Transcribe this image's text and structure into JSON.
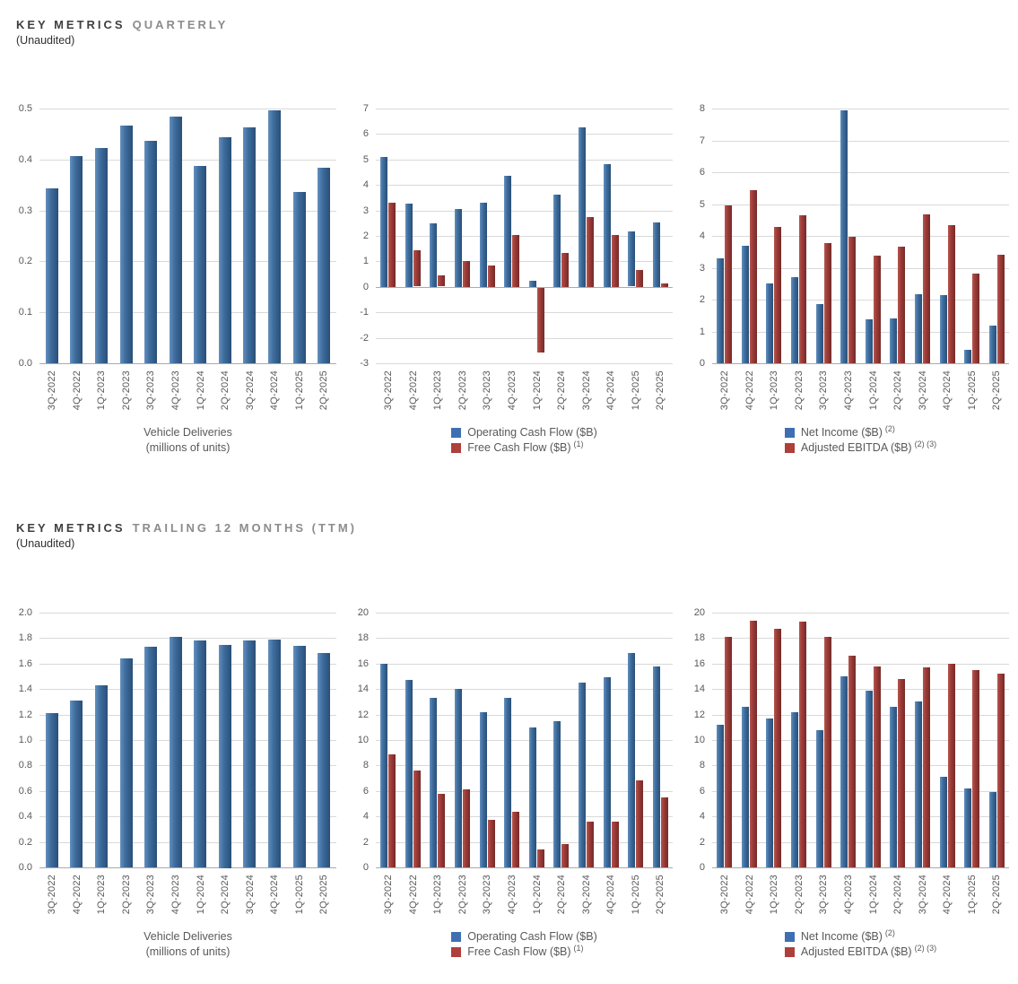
{
  "sections": [
    {
      "title_strong": "KEY METRICS",
      "title_light": "QUARTERLY",
      "subtitle": "(Unaudited)"
    },
    {
      "title_strong": "KEY METRICS",
      "title_light": "TRAILING 12 MONTHS (TTM)",
      "subtitle": "(Unaudited)"
    }
  ],
  "colors": {
    "bar_blue": "#3E6D9E",
    "bar_red": "#9E3B38",
    "legend_blue": "#3E6FB2",
    "legend_red": "#AE3F3B",
    "gridline": "#D9D9D9",
    "axis_line": "#ABABAB",
    "tick_text": "#595959",
    "title_dark": "#3F3F3F",
    "title_light": "#8C8C8C"
  },
  "chart_data": [
    {
      "id": "quarterly-vehicle-deliveries",
      "type": "bar",
      "section": "KEY METRICS QUARTERLY",
      "categories": [
        "3Q-2022",
        "4Q-2022",
        "1Q-2023",
        "2Q-2023",
        "3Q-2023",
        "4Q-2023",
        "1Q-2024",
        "2Q-2024",
        "3Q-2024",
        "4Q-2024",
        "1Q-2025",
        "2Q-2025"
      ],
      "values": [
        0.344,
        0.406,
        0.423,
        0.466,
        0.436,
        0.485,
        0.387,
        0.444,
        0.463,
        0.496,
        0.337,
        0.384
      ],
      "title": "",
      "xlabel": "Vehicle Deliveries (millions of units)",
      "xlabel_lines": [
        "Vehicle Deliveries",
        "(millions of units)"
      ],
      "ylabel": "",
      "ylim": [
        0,
        0.5
      ],
      "yticks": [
        "0.5",
        "0.4",
        "0.3",
        "0.2",
        "0.1",
        "0.0"
      ],
      "grid": true,
      "legend_position": "none"
    },
    {
      "id": "quarterly-cash-flow",
      "type": "bar",
      "section": "KEY METRICS QUARTERLY",
      "categories": [
        "3Q-2022",
        "4Q-2022",
        "1Q-2023",
        "2Q-2023",
        "3Q-2023",
        "4Q-2023",
        "1Q-2024",
        "2Q-2024",
        "3Q-2024",
        "4Q-2024",
        "1Q-2025",
        "2Q-2025"
      ],
      "series": [
        {
          "name": "Operating Cash Flow ($B)",
          "sup": "",
          "color": "blue",
          "values": [
            5.1,
            3.28,
            2.51,
            3.06,
            3.31,
            4.37,
            0.24,
            3.61,
            6.25,
            4.83,
            2.16,
            2.54
          ]
        },
        {
          "name": "Free Cash Flow ($B)",
          "sup": "(1)",
          "color": "red",
          "values": [
            3.3,
            1.42,
            0.44,
            1.01,
            0.85,
            2.05,
            -2.53,
            1.34,
            2.74,
            2.03,
            0.66,
            0.15
          ]
        }
      ],
      "title": "",
      "ylim": [
        -3,
        7
      ],
      "yticks": [
        "7",
        "6",
        "5",
        "4",
        "3",
        "2",
        "1",
        "0",
        "-1",
        "-2",
        "-3"
      ],
      "grid": true,
      "legend_position": "bottom"
    },
    {
      "id": "quarterly-net-income-ebitda",
      "type": "bar",
      "section": "KEY METRICS QUARTERLY",
      "categories": [
        "3Q-2022",
        "4Q-2022",
        "1Q-2023",
        "2Q-2023",
        "3Q-2023",
        "4Q-2023",
        "1Q-2024",
        "2Q-2024",
        "3Q-2024",
        "4Q-2024",
        "1Q-2025",
        "2Q-2025"
      ],
      "series": [
        {
          "name": "Net Income ($B)",
          "sup": "(2)",
          "color": "blue",
          "values": [
            3.29,
            3.69,
            2.51,
            2.7,
            1.85,
            7.93,
            1.39,
            1.42,
            2.17,
            2.13,
            0.41,
            1.17
          ]
        },
        {
          "name": "Adjusted EBITDA ($B)",
          "sup": "(2) (3)",
          "color": "red",
          "values": [
            4.97,
            5.45,
            4.28,
            4.65,
            3.77,
            3.96,
            3.38,
            3.67,
            4.67,
            4.33,
            2.81,
            3.4
          ]
        }
      ],
      "title": "",
      "ylim": [
        0,
        8
      ],
      "yticks": [
        "8",
        "7",
        "6",
        "5",
        "4",
        "3",
        "2",
        "1",
        "0"
      ],
      "grid": true,
      "legend_position": "bottom"
    },
    {
      "id": "ttm-vehicle-deliveries",
      "type": "bar",
      "section": "KEY METRICS TRAILING 12 MONTHS (TTM)",
      "categories": [
        "3Q-2022",
        "4Q-2022",
        "1Q-2023",
        "2Q-2023",
        "3Q-2023",
        "4Q-2023",
        "1Q-2024",
        "2Q-2024",
        "3Q-2024",
        "4Q-2024",
        "1Q-2025",
        "2Q-2025"
      ],
      "values": [
        1.21,
        1.31,
        1.43,
        1.64,
        1.73,
        1.81,
        1.78,
        1.75,
        1.78,
        1.79,
        1.74,
        1.68
      ],
      "title": "",
      "xlabel": "Vehicle Deliveries (millions of units)",
      "xlabel_lines": [
        "Vehicle Deliveries",
        "(millions of units)"
      ],
      "ylabel": "",
      "ylim": [
        0,
        2.0
      ],
      "yticks": [
        "2.0",
        "1.8",
        "1.6",
        "1.4",
        "1.2",
        "1.0",
        "0.8",
        "0.6",
        "0.4",
        "0.2",
        "0.0"
      ],
      "grid": true,
      "legend_position": "none"
    },
    {
      "id": "ttm-cash-flow",
      "type": "bar",
      "section": "KEY METRICS TRAILING 12 MONTHS (TTM)",
      "categories": [
        "3Q-2022",
        "4Q-2022",
        "1Q-2023",
        "2Q-2023",
        "3Q-2023",
        "4Q-2023",
        "1Q-2024",
        "2Q-2024",
        "3Q-2024",
        "4Q-2024",
        "1Q-2025",
        "2Q-2025"
      ],
      "series": [
        {
          "name": "Operating Cash Flow ($B)",
          "sup": "",
          "color": "blue",
          "values": [
            16.0,
            14.7,
            13.3,
            14.0,
            12.2,
            13.3,
            11.0,
            11.5,
            14.5,
            14.9,
            16.8,
            15.8
          ]
        },
        {
          "name": "Free Cash Flow ($B)",
          "sup": "(1)",
          "color": "red",
          "values": [
            8.9,
            7.6,
            5.8,
            6.1,
            3.7,
            4.4,
            1.4,
            1.8,
            3.6,
            3.6,
            6.8,
            5.5
          ]
        }
      ],
      "title": "",
      "ylim": [
        0,
        20
      ],
      "yticks": [
        "20",
        "18",
        "16",
        "14",
        "12",
        "10",
        "8",
        "6",
        "4",
        "2",
        "0"
      ],
      "grid": true,
      "legend_position": "bottom"
    },
    {
      "id": "ttm-net-income-ebitda",
      "type": "bar",
      "section": "KEY METRICS TRAILING 12 MONTHS (TTM)",
      "categories": [
        "3Q-2022",
        "4Q-2022",
        "1Q-2023",
        "2Q-2023",
        "3Q-2023",
        "4Q-2023",
        "1Q-2024",
        "2Q-2024",
        "3Q-2024",
        "4Q-2024",
        "1Q-2025",
        "2Q-2025"
      ],
      "series": [
        {
          "name": "Net Income ($B)",
          "sup": "(2)",
          "color": "blue",
          "values": [
            11.2,
            12.6,
            11.7,
            12.2,
            10.8,
            15.0,
            13.9,
            12.6,
            13.0,
            7.1,
            6.2,
            5.9
          ]
        },
        {
          "name": "Adjusted EBITDA ($B)",
          "sup": "(2) (3)",
          "color": "red",
          "values": [
            18.1,
            19.4,
            18.7,
            19.3,
            18.1,
            16.6,
            15.8,
            14.8,
            15.7,
            16.0,
            15.5,
            15.2
          ]
        }
      ],
      "title": "",
      "ylim": [
        0,
        20
      ],
      "yticks": [
        "20",
        "18",
        "16",
        "14",
        "12",
        "10",
        "8",
        "6",
        "4",
        "2",
        "0"
      ],
      "grid": true,
      "legend_position": "bottom"
    }
  ]
}
